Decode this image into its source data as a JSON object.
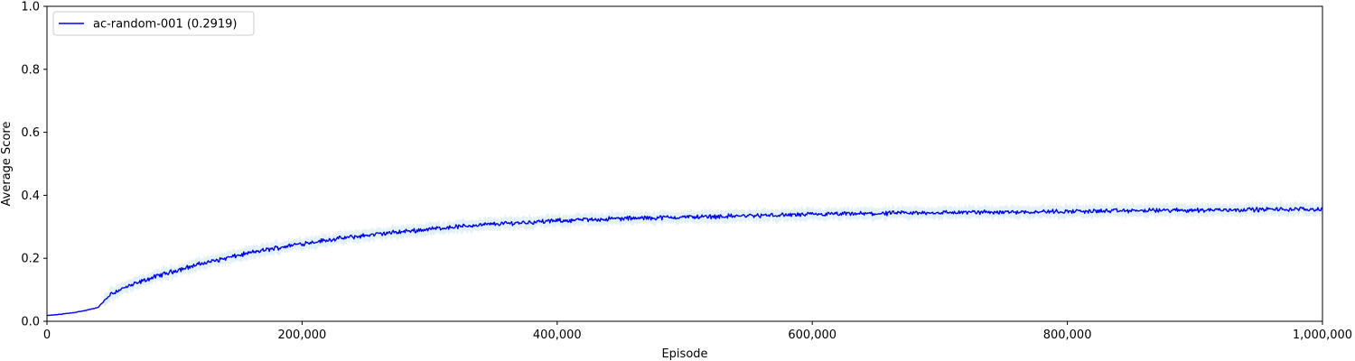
{
  "chart_data": {
    "type": "line",
    "xlabel": "Episode",
    "ylabel": "Average Score",
    "xlim": [
      0,
      1000000
    ],
    "ylim": [
      0.0,
      1.0
    ],
    "xticks": [
      0,
      200000,
      400000,
      600000,
      800000,
      1000000
    ],
    "xtick_labels": [
      "0",
      "200,000",
      "400,000",
      "600,000",
      "800,000",
      "1,000,000"
    ],
    "yticks": [
      0.0,
      0.2,
      0.4,
      0.6,
      0.8,
      1.0
    ],
    "ytick_labels": [
      "0.0",
      "0.2",
      "0.4",
      "0.6",
      "0.8",
      "1.0"
    ],
    "grid": false,
    "legend_position": "top-left",
    "series": [
      {
        "name": "ac-random-001 (0.2919)",
        "color": "#0000ff",
        "band_color": "#add8e6",
        "x": [
          0,
          10000,
          20000,
          30000,
          40000,
          45000,
          50000,
          60000,
          70000,
          80000,
          90000,
          100000,
          120000,
          140000,
          160000,
          180000,
          200000,
          220000,
          240000,
          260000,
          280000,
          300000,
          320000,
          340000,
          360000,
          380000,
          400000,
          420000,
          440000,
          460000,
          480000,
          500000,
          550000,
          600000,
          650000,
          700000,
          750000,
          800000,
          850000,
          900000,
          950000,
          1000000
        ],
        "y": [
          0.018,
          0.022,
          0.027,
          0.034,
          0.044,
          0.065,
          0.088,
          0.105,
          0.12,
          0.135,
          0.148,
          0.16,
          0.182,
          0.2,
          0.218,
          0.233,
          0.247,
          0.258,
          0.268,
          0.277,
          0.285,
          0.293,
          0.3,
          0.306,
          0.311,
          0.315,
          0.319,
          0.322,
          0.325,
          0.327,
          0.329,
          0.331,
          0.335,
          0.339,
          0.342,
          0.345,
          0.347,
          0.349,
          0.351,
          0.353,
          0.355,
          0.356
        ]
      }
    ]
  }
}
